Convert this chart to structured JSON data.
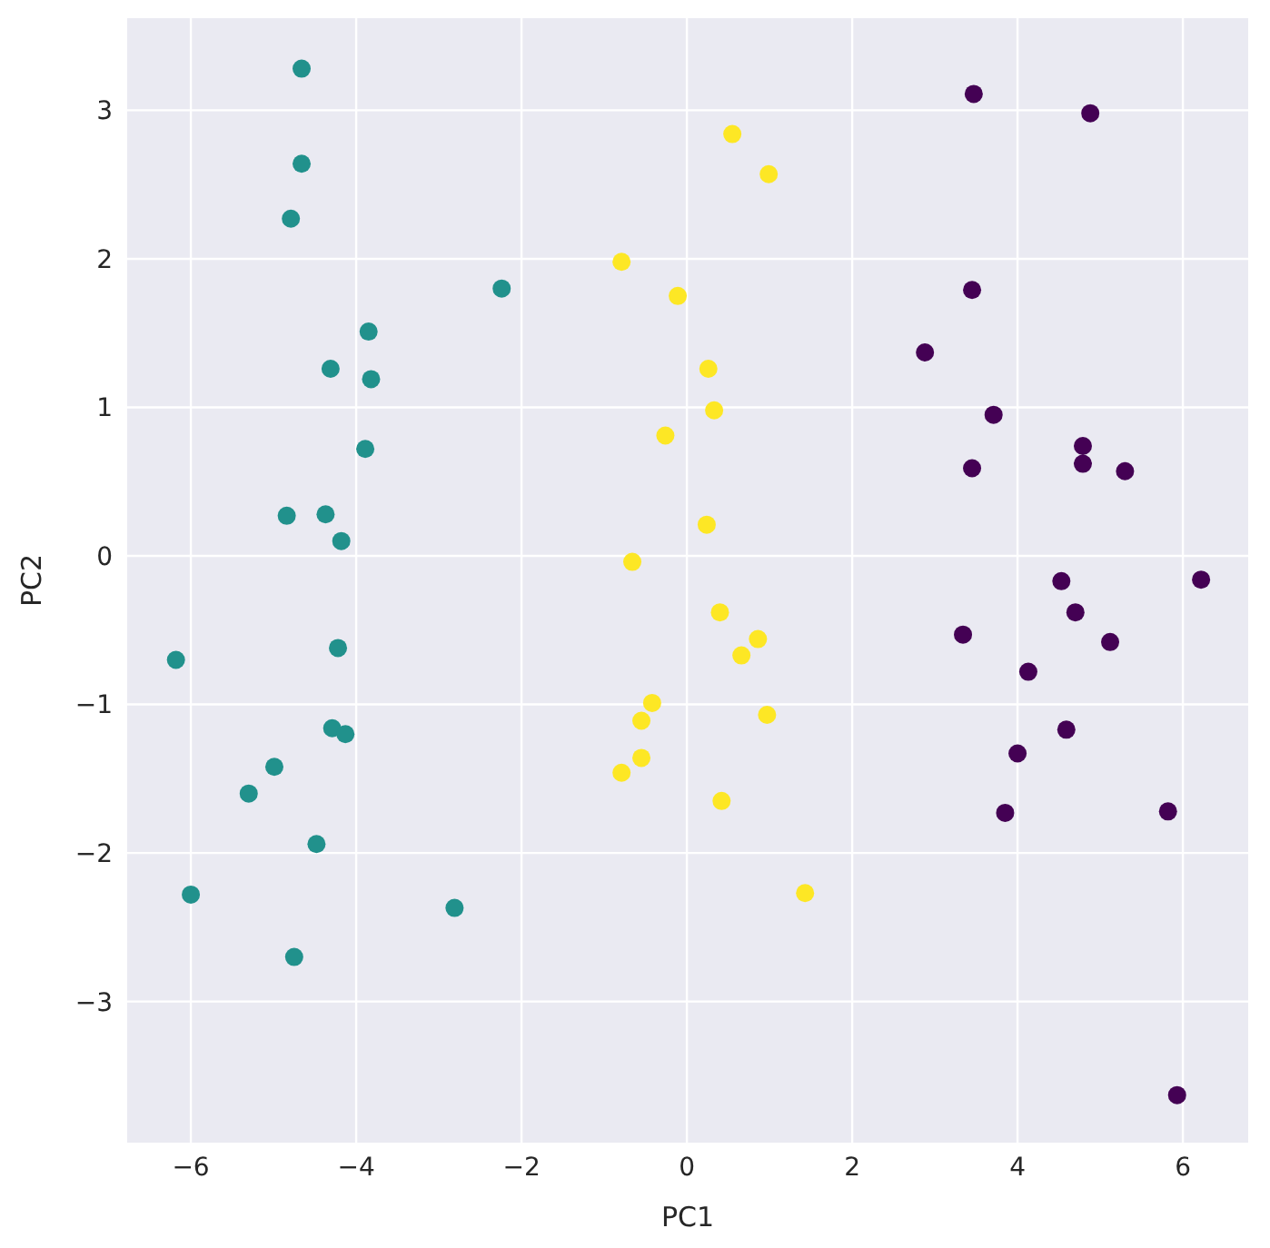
{
  "chart_data": {
    "type": "scatter",
    "xlabel": "PC1",
    "ylabel": "PC2",
    "xlim": [
      -6.77,
      6.79
    ],
    "ylim": [
      -3.95,
      3.62
    ],
    "xticks": [
      -6,
      -4,
      -2,
      0,
      2,
      4,
      6
    ],
    "yticks": [
      -3,
      -2,
      -1,
      0,
      1,
      2,
      3
    ],
    "grid": true,
    "marker": "circle",
    "series": [
      {
        "color": "#440154",
        "x": [
          3.47,
          4.88,
          3.45,
          2.88,
          3.71,
          4.79,
          3.45,
          4.79,
          5.3,
          4.53,
          6.22,
          4.7,
          3.34,
          5.12,
          4.13,
          4.59,
          4.0,
          3.85,
          5.82,
          5.93
        ],
        "values": [
          3.11,
          2.98,
          1.79,
          1.37,
          0.95,
          0.74,
          0.59,
          0.62,
          0.57,
          -0.17,
          -0.16,
          -0.38,
          -0.53,
          -0.58,
          -0.78,
          -1.17,
          -1.33,
          -1.73,
          -1.72,
          -3.63
        ]
      },
      {
        "color": "#21918c",
        "x": [
          -4.66,
          -4.66,
          -4.79,
          -2.24,
          -3.85,
          -4.31,
          -3.82,
          -3.89,
          -4.84,
          -4.37,
          -4.18,
          -6.18,
          -4.22,
          -4.29,
          -4.13,
          -4.99,
          -5.3,
          -4.48,
          -6.0,
          -2.81,
          -4.75
        ],
        "values": [
          3.28,
          2.64,
          2.27,
          1.8,
          1.51,
          1.26,
          1.19,
          0.72,
          0.27,
          0.28,
          0.1,
          -0.7,
          -0.62,
          -1.16,
          -1.2,
          -1.42,
          -1.6,
          -1.94,
          -2.28,
          -2.37,
          -2.7
        ]
      },
      {
        "color": "#fde725",
        "x": [
          0.55,
          0.99,
          -0.79,
          -0.11,
          0.26,
          0.33,
          -0.26,
          0.24,
          -0.66,
          0.4,
          0.86,
          0.66,
          -0.42,
          -0.55,
          0.97,
          -0.55,
          -0.79,
          0.42,
          1.43
        ],
        "values": [
          2.84,
          2.57,
          1.98,
          1.75,
          1.26,
          0.98,
          0.81,
          0.21,
          -0.04,
          -0.38,
          -0.56,
          -0.67,
          -0.99,
          -1.11,
          -1.07,
          -1.36,
          -1.46,
          -1.65,
          -2.27
        ]
      }
    ]
  }
}
